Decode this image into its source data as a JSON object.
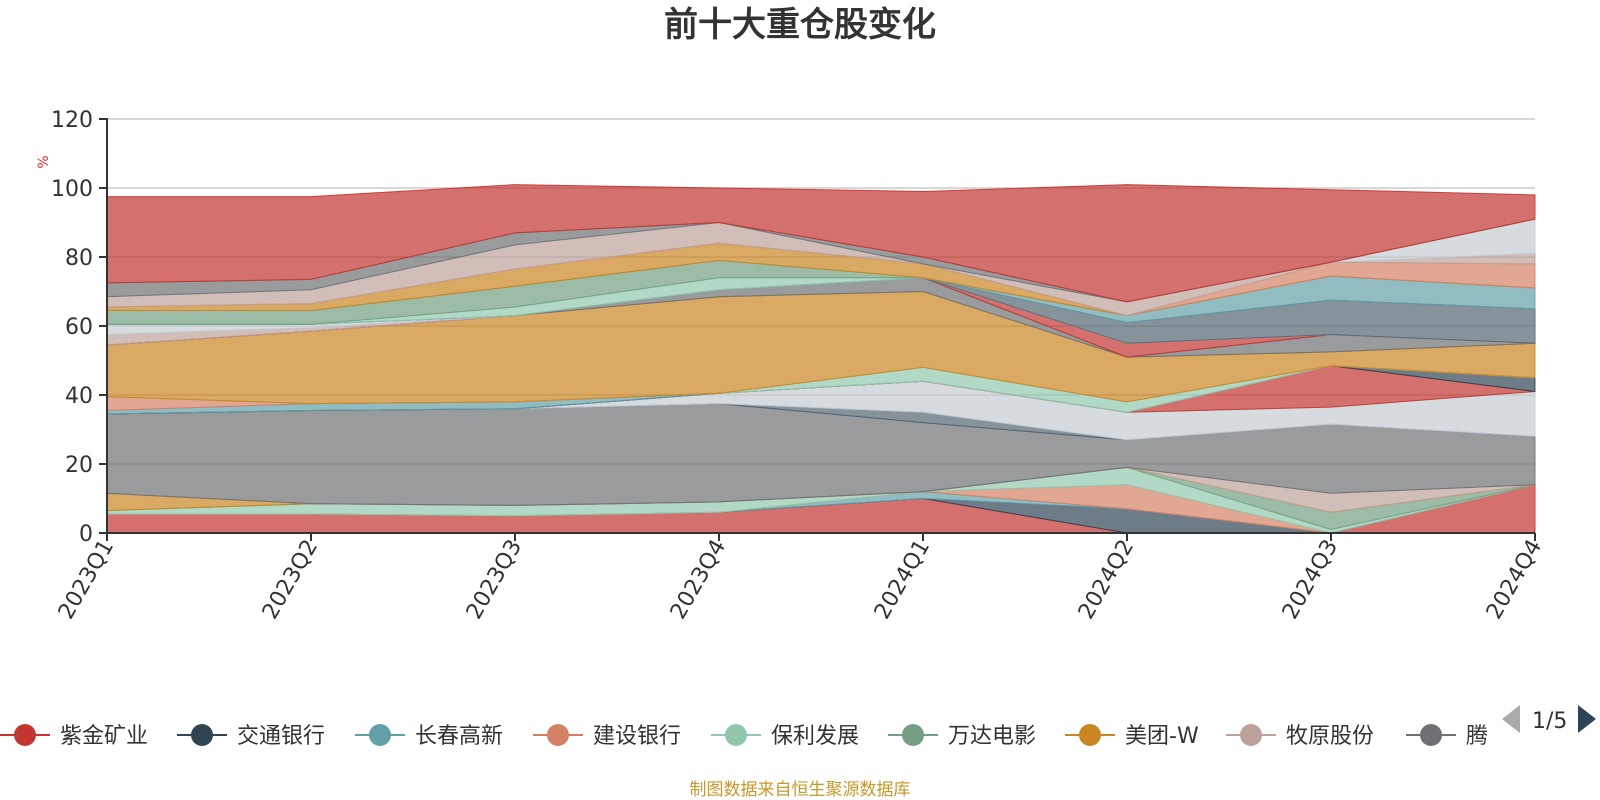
{
  "chart_data": {
    "type": "area",
    "title": "前十大重仓股变化",
    "ylabel": "%",
    "ylim": [
      0,
      120
    ],
    "yticks": [
      0,
      20,
      40,
      60,
      80,
      100,
      120
    ],
    "grid": true,
    "categories": [
      "2023Q1",
      "2023Q2",
      "2023Q3",
      "2023Q4",
      "2024Q1",
      "2024Q2",
      "2024Q3",
      "2024Q4"
    ],
    "series": [
      {
        "name": "紫金矿业",
        "color": "#c23531",
        "values": [
          5.5,
          5.5,
          5,
          6,
          10,
          0,
          0,
          14
        ]
      },
      {
        "name": "交通银行",
        "color": "#2f4554",
        "values": [
          0,
          0,
          0,
          0,
          0,
          7,
          0,
          0
        ]
      },
      {
        "name": "长春高新",
        "color": "#61a0a8",
        "values": [
          0,
          0,
          0,
          0,
          2,
          0,
          0,
          0
        ]
      },
      {
        "name": "建设银行",
        "color": "#d48265",
        "values": [
          0,
          0,
          0,
          0,
          0,
          7,
          0,
          0
        ]
      },
      {
        "name": "保利发展",
        "color": "#91c7ae",
        "values": [
          1,
          3,
          3,
          3,
          0,
          5,
          1,
          0
        ]
      },
      {
        "name": "万达电影",
        "color": "#749f83",
        "values": [
          0,
          0,
          0,
          0,
          0,
          0,
          5,
          0
        ]
      },
      {
        "name": "美团-W",
        "color": "#ca8622",
        "values": [
          5,
          0,
          0,
          0,
          0,
          0,
          0,
          0
        ]
      },
      {
        "name": "牧原股份",
        "color": "#bda29a",
        "values": [
          0,
          0,
          0,
          0,
          0,
          0,
          5.5,
          0
        ]
      },
      {
        "name": "腾讯控股",
        "color": "#6e7074",
        "values": [
          23,
          27,
          28,
          28.5,
          20,
          8,
          20,
          14
        ]
      },
      {
        "name": "",
        "color": "#546570",
        "values": [
          0,
          0,
          0,
          0,
          3,
          0,
          0,
          0
        ]
      },
      {
        "name": "",
        "color": "#c4ccd3",
        "values": [
          0,
          0,
          0,
          3,
          9,
          8,
          5,
          13
        ]
      },
      {
        "name": "",
        "color": "#c23531",
        "values": [
          0,
          0,
          0,
          0,
          0,
          0,
          12,
          0
        ]
      },
      {
        "name": "",
        "color": "#2f4554",
        "values": [
          0,
          0,
          0,
          0,
          0,
          0,
          0,
          4
        ]
      },
      {
        "name": "",
        "color": "#61a0a8",
        "values": [
          1,
          2,
          2,
          0,
          0,
          0,
          0,
          0
        ]
      },
      {
        "name": "",
        "color": "#d48265",
        "values": [
          4,
          0,
          0,
          0,
          0,
          0,
          0,
          0
        ]
      },
      {
        "name": "",
        "color": "#91c7ae",
        "values": [
          0,
          0,
          0,
          0,
          4,
          3,
          0,
          0
        ]
      },
      {
        "name": "",
        "color": "#ca8622",
        "values": [
          15,
          21,
          25,
          28,
          22,
          13,
          4,
          10
        ]
      },
      {
        "name": "",
        "color": "#6e7074",
        "values": [
          0,
          0,
          0,
          2,
          4,
          0,
          5,
          0
        ]
      },
      {
        "name": "",
        "color": "#c23531",
        "values": [
          0,
          0,
          0,
          0,
          0,
          4,
          0,
          0
        ]
      },
      {
        "name": "",
        "color": "#bda29a",
        "values": [
          3,
          1,
          0,
          0,
          0,
          0,
          0,
          0
        ]
      },
      {
        "name": "",
        "color": "#c4ccd3",
        "values": [
          3,
          1,
          0,
          0,
          0,
          0,
          0,
          0
        ]
      },
      {
        "name": "",
        "color": "#546570",
        "values": [
          0,
          0,
          0,
          0,
          0,
          6,
          10,
          10
        ]
      },
      {
        "name": "",
        "color": "#61a0a8",
        "values": [
          0,
          0,
          0,
          0,
          0,
          2,
          7,
          6
        ]
      },
      {
        "name": "",
        "color": "#91c7ae",
        "values": [
          0,
          0,
          2.5,
          3.5,
          0,
          0,
          0,
          0
        ]
      },
      {
        "name": "",
        "color": "#749f83",
        "values": [
          4,
          4,
          6,
          5,
          0,
          0,
          0,
          0
        ]
      },
      {
        "name": "",
        "color": "#ca8622",
        "values": [
          1,
          2,
          5,
          5,
          4,
          0,
          0,
          0
        ]
      },
      {
        "name": "",
        "color": "#d48265",
        "values": [
          0,
          0,
          0,
          0,
          0,
          0,
          4,
          7
        ]
      },
      {
        "name": "",
        "color": "#bda29a",
        "values": [
          3,
          4,
          7,
          6,
          0,
          4,
          0,
          3
        ]
      },
      {
        "name": "",
        "color": "#c4ccd3",
        "values": [
          0,
          0,
          0,
          0,
          0,
          0,
          0,
          10
        ]
      },
      {
        "name": "",
        "color": "#6e7074",
        "values": [
          4,
          3,
          3.5,
          0,
          2,
          0,
          0,
          0
        ]
      },
      {
        "name": "",
        "color": "#c23531",
        "values": [
          25,
          24,
          14,
          10,
          19,
          34,
          21,
          7
        ]
      }
    ]
  },
  "legend": {
    "items": [
      {
        "label": "紫金矿业",
        "color": "#c23531"
      },
      {
        "label": "交通银行",
        "color": "#2f4554"
      },
      {
        "label": "长春高新",
        "color": "#61a0a8"
      },
      {
        "label": "建设银行",
        "color": "#d48265"
      },
      {
        "label": "保利发展",
        "color": "#91c7ae"
      },
      {
        "label": "万达电影",
        "color": "#749f83"
      },
      {
        "label": "美团-W",
        "color": "#ca8622"
      },
      {
        "label": "牧原股份",
        "color": "#bda29a"
      },
      {
        "label": "腾",
        "color": "#6e7074"
      }
    ],
    "page": "1/5"
  },
  "footer": {
    "source": "制图数据来自恒生聚源数据库"
  }
}
